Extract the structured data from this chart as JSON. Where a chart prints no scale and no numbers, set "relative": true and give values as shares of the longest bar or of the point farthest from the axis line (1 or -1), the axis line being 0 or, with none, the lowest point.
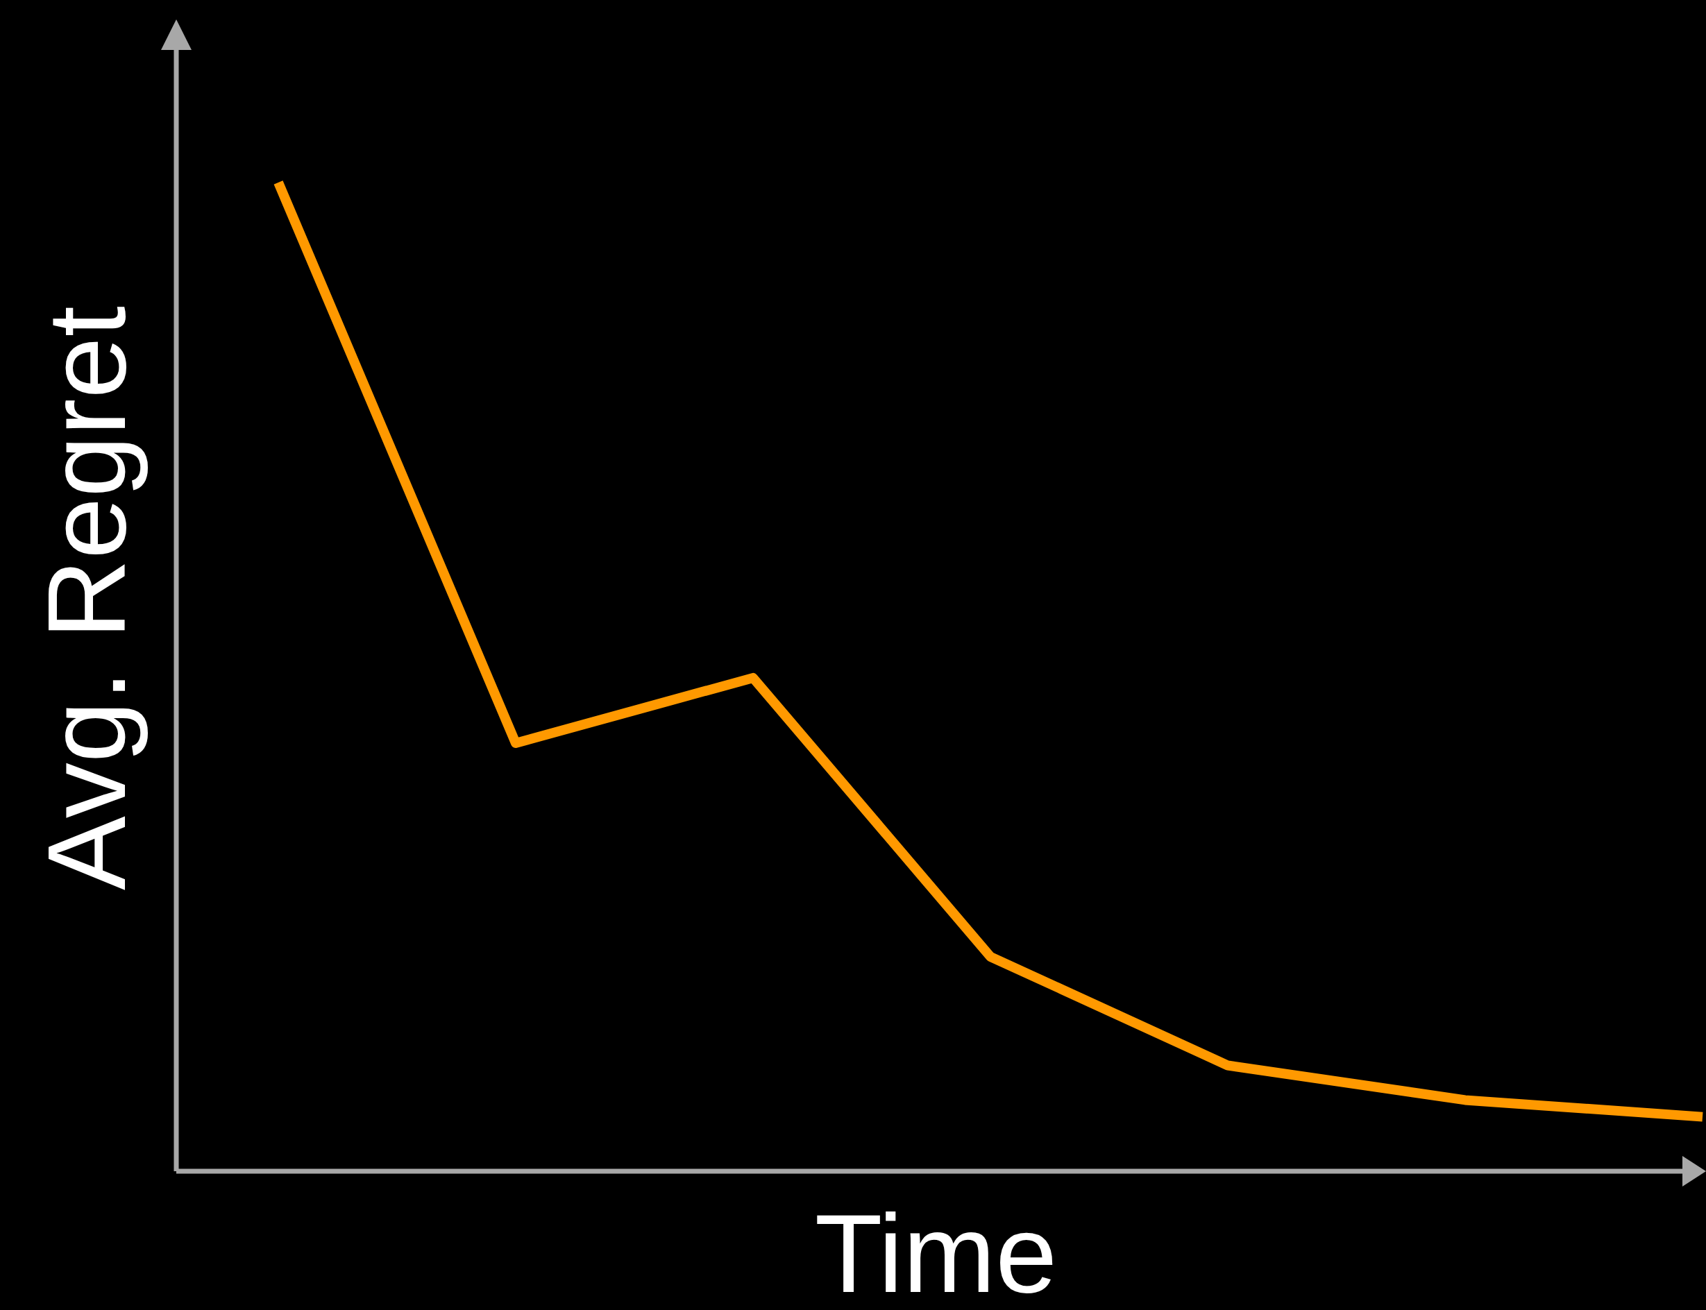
{
  "chart_data": {
    "type": "line",
    "relative": true,
    "xlabel": "Time",
    "ylabel": "Avg. Regret",
    "marker": "none",
    "line_style": "solid",
    "categories": [
      null,
      null,
      null,
      null,
      null,
      null,
      null
    ],
    "series": [
      {
        "color": "#ff9900",
        "values": [
          1,
          0.433,
          0.499,
          0.217,
          0.107,
          0.072,
          0.055
        ]
      }
    ]
  }
}
